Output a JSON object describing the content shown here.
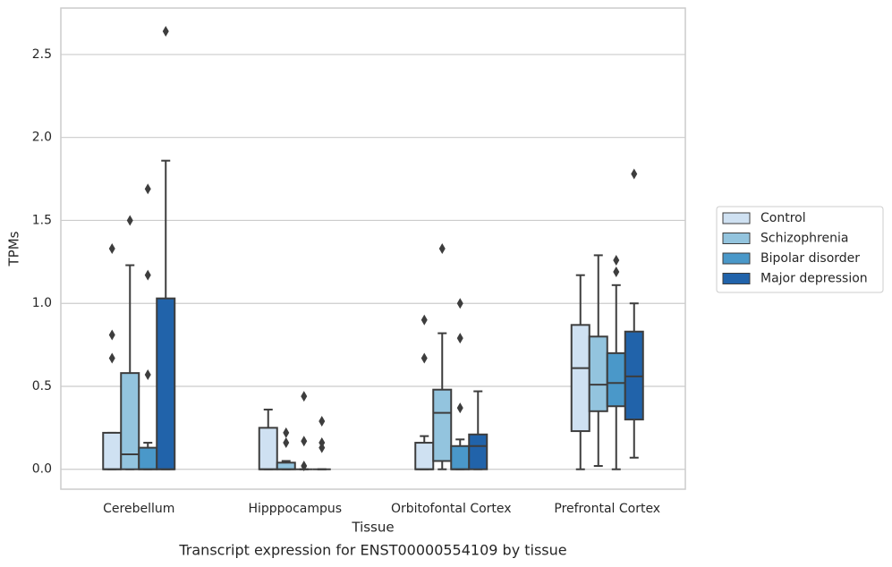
{
  "chart_data": {
    "type": "box",
    "title": "Transcript expression for ENST00000554109 by tissue",
    "x_label": "Tissue",
    "y_label": "TPMs",
    "categories": [
      "Cerebellum",
      "Hipppocampus",
      "Orbitofontal Cortex",
      "Prefrontal Cortex"
    ],
    "ylim": [
      -0.12,
      2.78
    ],
    "yticks": [
      {
        "value": 0,
        "label": "0.0"
      },
      0.5,
      {
        "value": 1,
        "label": "1.0"
      },
      1.5,
      {
        "value": 2,
        "label": "2.0"
      },
      2.5
    ],
    "grid": true,
    "legend": "right",
    "series": [
      {
        "name": "Control",
        "color": "#cfe1f2",
        "values": [
          {
            "whislo": 0,
            "q1": 0,
            "med": 0,
            "q3": 0.22,
            "whishi": 0.22,
            "fliers": [
              1.33,
              0.81,
              0.67
            ]
          },
          {
            "whislo": 0,
            "q1": 0,
            "med": 0,
            "q3": 0.25,
            "whishi": 0.36,
            "fliers": []
          },
          {
            "whislo": 0,
            "q1": 0,
            "med": 0,
            "q3": 0.16,
            "whishi": 0.2,
            "fliers": [
              0.9,
              0.67
            ]
          },
          {
            "whislo": 0,
            "q1": 0.23,
            "med": 0.61,
            "q3": 0.87,
            "whishi": 1.17,
            "fliers": []
          }
        ]
      },
      {
        "name": "Schizophrenia",
        "color": "#93c4de",
        "values": [
          {
            "whislo": 0,
            "q1": 0,
            "med": 0.09,
            "q3": 0.58,
            "whishi": 1.23,
            "fliers": [
              1.5
            ]
          },
          {
            "whislo": 0,
            "q1": 0,
            "med": 0,
            "q3": 0.04,
            "whishi": 0.05,
            "fliers": [
              0.22,
              0.16
            ]
          },
          {
            "whislo": 0,
            "q1": 0.05,
            "med": 0.34,
            "q3": 0.48,
            "whishi": 0.82,
            "fliers": [
              1.33
            ]
          },
          {
            "whislo": 0.02,
            "q1": 0.35,
            "med": 0.51,
            "q3": 0.8,
            "whishi": 1.29,
            "fliers": []
          }
        ]
      },
      {
        "name": "Bipolar disorder",
        "color": "#4a98c9",
        "values": [
          {
            "whislo": 0,
            "q1": 0,
            "med": 0,
            "q3": 0.13,
            "whishi": 0.16,
            "fliers": [
              1.69,
              1.17,
              0.57
            ]
          },
          {
            "whislo": 0,
            "q1": 0,
            "med": 0,
            "q3": 0,
            "whishi": 0,
            "fliers": [
              0.44,
              0.17,
              0.02
            ]
          },
          {
            "whislo": 0,
            "q1": 0,
            "med": 0,
            "q3": 0.14,
            "whishi": 0.18,
            "fliers": [
              1.0,
              0.79,
              0.37
            ]
          },
          {
            "whislo": 0,
            "q1": 0.38,
            "med": 0.52,
            "q3": 0.7,
            "whishi": 1.11,
            "fliers": [
              1.26,
              1.19
            ]
          }
        ]
      },
      {
        "name": "Major depression",
        "color": "#2163aa",
        "values": [
          {
            "whislo": 0,
            "q1": 0,
            "med": 0,
            "q3": 1.03,
            "whishi": 1.86,
            "fliers": [
              2.64
            ]
          },
          {
            "whislo": 0,
            "q1": 0,
            "med": 0,
            "q3": 0,
            "whishi": 0,
            "fliers": [
              0.29,
              0.16,
              0.13
            ]
          },
          {
            "whislo": 0,
            "q1": 0,
            "med": 0.14,
            "q3": 0.21,
            "whishi": 0.47,
            "fliers": []
          },
          {
            "whislo": 0.07,
            "q1": 0.3,
            "med": 0.56,
            "q3": 0.83,
            "whishi": 1.0,
            "fliers": [
              1.78
            ]
          }
        ]
      }
    ]
  }
}
